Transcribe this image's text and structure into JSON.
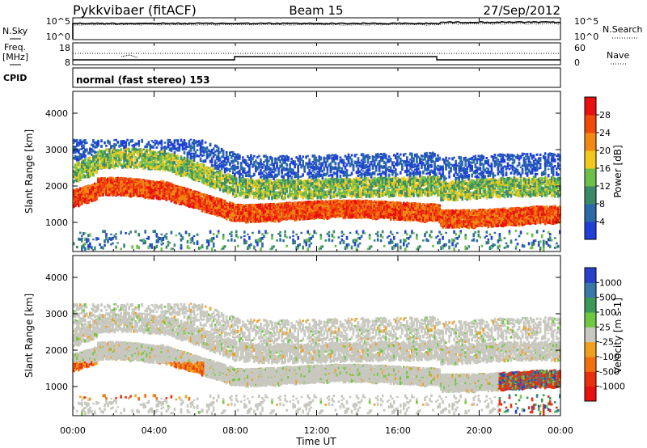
{
  "header": {
    "station": "Pykkvibaer (fitACF)",
    "beam": "Beam 15",
    "date": "27/Sep/2012"
  },
  "nsky_panel": {
    "left_label": "N.Sky",
    "left_ticks": [
      "10^5",
      "10^0"
    ],
    "right_ticks": [
      "10^5",
      "10^0"
    ],
    "right_label": "N.Search"
  },
  "freq_panel": {
    "left_label_1": "Freq.",
    "left_label_2": "[MHz]",
    "left_ticks": [
      "18",
      "8"
    ],
    "right_ticks": [
      "60",
      "0"
    ],
    "right_label": "Nave"
  },
  "cpid_panel": {
    "label": "CPID",
    "mode": "normal (fast stereo) 153"
  },
  "chart_data": [
    {
      "type": "heatmap",
      "panel": "power",
      "ylabel": "Slant Range [km]",
      "ylim": [
        200,
        4600
      ],
      "yticks": [
        "1000",
        "2000",
        "3000",
        "4000"
      ],
      "xlim": [
        "00:00",
        "24:00"
      ],
      "colorbar_label": "Power [dB]",
      "colorbar_ticks": [
        "4",
        "8",
        "12",
        "16",
        "20",
        "24",
        "28"
      ],
      "colorbar_range": [
        0,
        32
      ],
      "colors": [
        "#1f3fd8",
        "#2a6aa8",
        "#3a8a6a",
        "#6cc04a",
        "#f0c81e",
        "#f08a14",
        "#f04a0a",
        "#e81010"
      ]
    },
    {
      "type": "heatmap",
      "panel": "velocity",
      "ylabel": "Slant Range [km]",
      "ylim": [
        200,
        4600
      ],
      "yticks": [
        "1000",
        "2000",
        "3000",
        "4000"
      ],
      "xlim": [
        "00:00",
        "24:00"
      ],
      "colorbar_label": "Velocity [m s-1]",
      "colorbar_ticks": [
        "1000",
        "500",
        "100",
        "25",
        "-25",
        "-100",
        "-500",
        "-1000"
      ],
      "colors": [
        "#2a40c8",
        "#3a78a8",
        "#3a9a5a",
        "#70c840",
        "#c8c8c0",
        "#f0a020",
        "#f07010",
        "#e83010",
        "#e81010"
      ]
    }
  ],
  "xaxis": {
    "ticks": [
      "00:00",
      "04:00",
      "08:00",
      "12:00",
      "16:00",
      "20:00",
      "00:00"
    ],
    "label": "Time UT"
  }
}
